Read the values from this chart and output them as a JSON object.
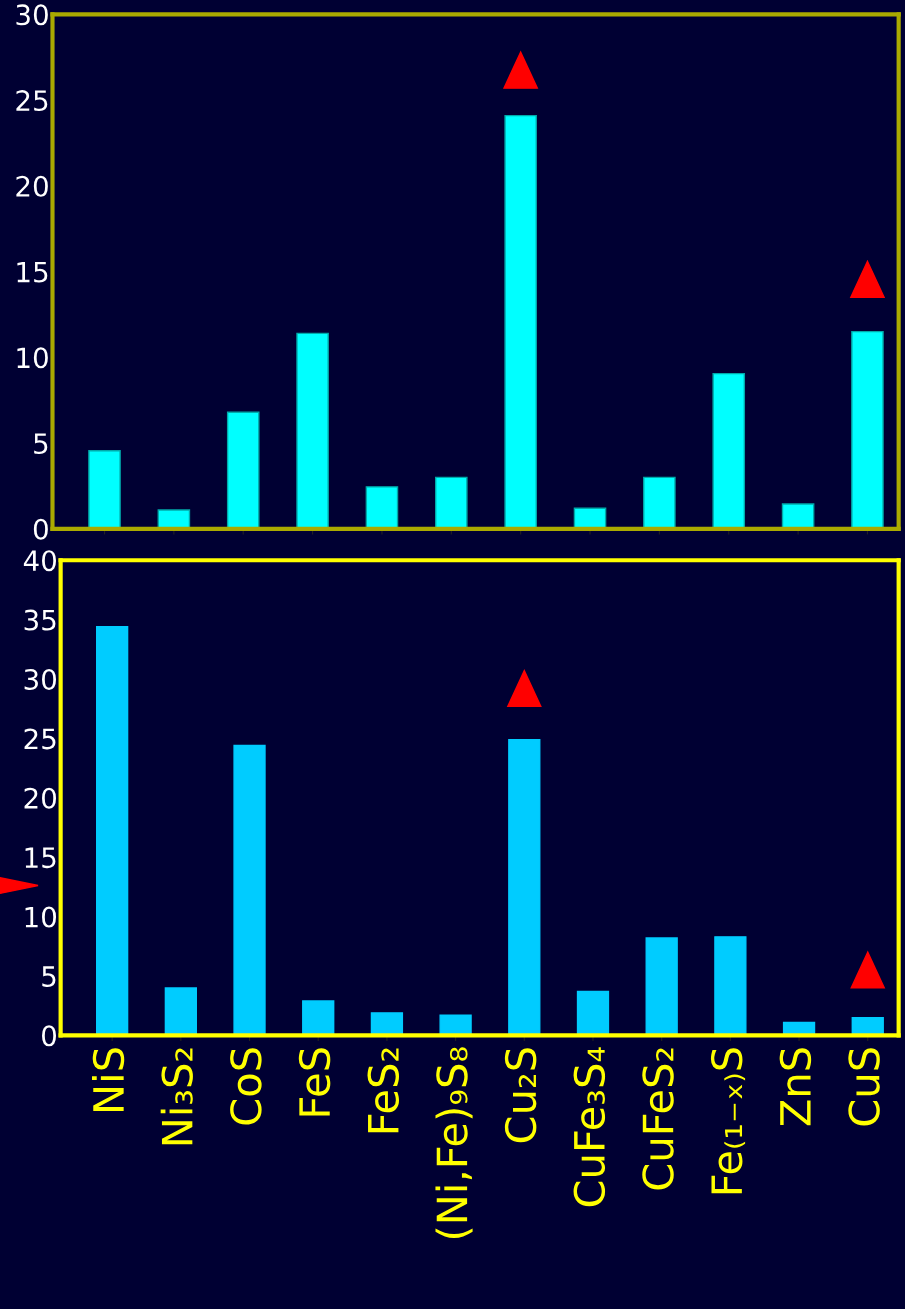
{
  "chart_data": [
    {
      "type": "bar",
      "categories": [
        null,
        null,
        null,
        null,
        null,
        null,
        null,
        null,
        null,
        null,
        null,
        null
      ],
      "values": [
        4.55,
        1.1,
        6.8,
        11.4,
        2.45,
        3.0,
        24.1,
        1.2,
        3.0,
        9.05,
        1.45,
        11.5
      ],
      "color": "#00ffff",
      "ylim": [
        0,
        30
      ],
      "yticks": [
        0,
        5,
        10,
        15,
        20,
        25,
        30
      ],
      "grid": false,
      "legend": false
    },
    {
      "type": "bar",
      "categories": [
        "NiS",
        "Ni₃S₂",
        "CoS",
        "FeS",
        "FeS₂",
        "(Ni,Fe)₉S₈",
        "Cu₂S",
        "CuFe₃S₄",
        "CuFeS₂",
        "Fe₍₁₋ₓ₎S",
        "ZnS",
        "CuS"
      ],
      "values": [
        34.4,
        4.0,
        24.4,
        2.9,
        1.9,
        1.7,
        24.9,
        3.7,
        8.2,
        8.3,
        1.1,
        1.5
      ],
      "color": "#00ccff",
      "ylim": [
        0,
        40
      ],
      "yticks": [
        0,
        5,
        10,
        15,
        20,
        25,
        30,
        35,
        40
      ],
      "grid": false,
      "legend": false
    }
  ]
}
